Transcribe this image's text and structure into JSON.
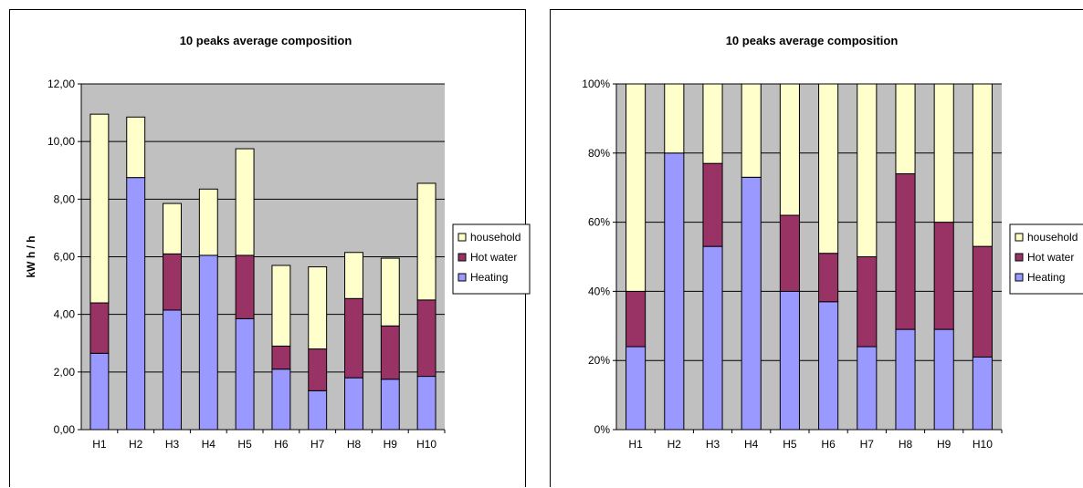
{
  "colors": {
    "plot_bg": "#c0c0c0",
    "heating": "#9999ff",
    "hot_water": "#993366",
    "household": "#ffffcc",
    "outline": "#000000"
  },
  "chart_data": [
    {
      "type": "bar",
      "stacked": true,
      "title": "10 peaks average composition",
      "xlabel": "",
      "ylabel": "kW h / h",
      "categories": [
        "H1",
        "H2",
        "H3",
        "H4",
        "H5",
        "H6",
        "H7",
        "H8",
        "H9",
        "H10"
      ],
      "series": [
        {
          "name": "Heating",
          "values": [
            2.65,
            8.75,
            4.15,
            6.05,
            3.85,
            2.1,
            1.35,
            1.8,
            1.75,
            1.85
          ]
        },
        {
          "name": "Hot water",
          "values": [
            1.75,
            0.0,
            1.95,
            0.0,
            2.2,
            0.8,
            1.45,
            2.75,
            1.85,
            2.65
          ]
        },
        {
          "name": "household",
          "values": [
            6.55,
            2.1,
            1.75,
            2.3,
            3.7,
            2.8,
            2.85,
            1.6,
            2.35,
            4.05
          ]
        }
      ],
      "ylim": [
        0,
        12
      ],
      "yticks": [
        0,
        2,
        4,
        6,
        8,
        10,
        12
      ],
      "ytick_labels": [
        "0,00",
        "2,00",
        "4,00",
        "6,00",
        "8,00",
        "10,00",
        "12,00"
      ],
      "grid": true,
      "legend": "right"
    },
    {
      "type": "bar",
      "stacked": true,
      "normalized": true,
      "title": "10 peaks average composition",
      "xlabel": "",
      "ylabel": "",
      "categories": [
        "H1",
        "H2",
        "H3",
        "H4",
        "H5",
        "H6",
        "H7",
        "H8",
        "H9",
        "H10"
      ],
      "series": [
        {
          "name": "Heating",
          "values": [
            24,
            80,
            53,
            73,
            40,
            37,
            24,
            29,
            29,
            21
          ]
        },
        {
          "name": "Hot water",
          "values": [
            16,
            0,
            24,
            0,
            22,
            14,
            26,
            45,
            31,
            32
          ]
        },
        {
          "name": "household",
          "values": [
            60,
            20,
            23,
            27,
            38,
            49,
            50,
            26,
            40,
            47
          ]
        }
      ],
      "ylim": [
        0,
        100
      ],
      "yticks": [
        0,
        20,
        40,
        60,
        80,
        100
      ],
      "ytick_labels": [
        "0%",
        "20%",
        "40%",
        "60%",
        "80%",
        "100%"
      ],
      "grid": true,
      "legend": "right"
    }
  ]
}
